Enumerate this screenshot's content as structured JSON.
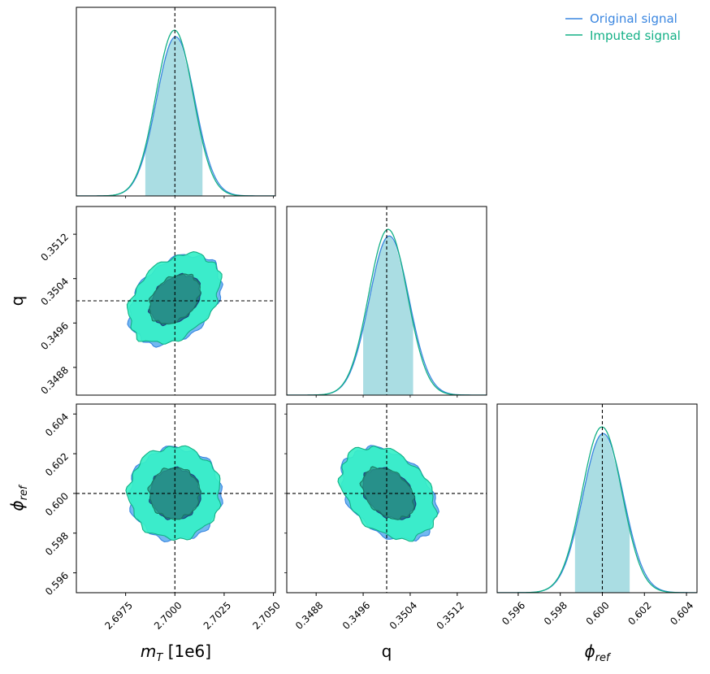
{
  "chart_data": {
    "type": "corner",
    "parameters": [
      {
        "key": "mT",
        "label": "m",
        "label_sub": "T",
        "label_suffix": " [1e6]",
        "truth": 2.7,
        "range": [
          2.695,
          2.7051
        ],
        "ticks": [
          2.6975,
          2.7,
          2.7025,
          2.705
        ],
        "tick_labels": [
          "2.6975",
          "2.7000",
          "2.7025",
          "2.7050"
        ],
        "mean": 2.7,
        "sd": 0.00095,
        "shaded_interval": [
          2.6985,
          2.7014
        ]
      },
      {
        "key": "q",
        "label": "q",
        "label_sub": "",
        "label_suffix": "",
        "truth": 0.35,
        "range": [
          0.3483,
          0.3517
        ],
        "ticks": [
          0.3488,
          0.3496,
          0.3504,
          0.3512
        ],
        "tick_labels": [
          "0.3488",
          "0.3496",
          "0.3504",
          "0.3512"
        ],
        "mean": 0.35003,
        "sd": 0.00033,
        "shaded_interval": [
          0.3496,
          0.35045
        ]
      },
      {
        "key": "phi",
        "label": "ϕ",
        "label_sub": "ref",
        "label_suffix": "",
        "truth": 0.6,
        "range": [
          0.595,
          0.6045
        ],
        "ticks": [
          0.596,
          0.598,
          0.6,
          0.602,
          0.604
        ],
        "tick_labels": [
          "0.596",
          "0.598",
          "0.600",
          "0.602",
          "0.604"
        ],
        "mean": 0.6,
        "sd": 0.00095,
        "shaded_interval": [
          0.5987,
          0.6013
        ]
      }
    ],
    "series": [
      {
        "name": "Original signal",
        "color": "#3a86e0",
        "fill_inner": "#1f6f8b",
        "fill_outer": "#6cb4f0"
      },
      {
        "name": "Imputed signal",
        "color": "#13b086",
        "fill_inner": "#2a9a88",
        "fill_outer": "#36f0c8"
      }
    ],
    "correlations": {
      "mT-q": 0.35,
      "mT-phi": 0.0,
      "q-phi": -0.35
    },
    "contour_levels": [
      "1-sigma",
      "2-sigma"
    ],
    "truth_line_style": "dashed",
    "legend_position": "top-right",
    "shaded_fill": "#aadde3"
  },
  "colors": {
    "original": "#3a86e0",
    "imputed": "#13b086"
  }
}
